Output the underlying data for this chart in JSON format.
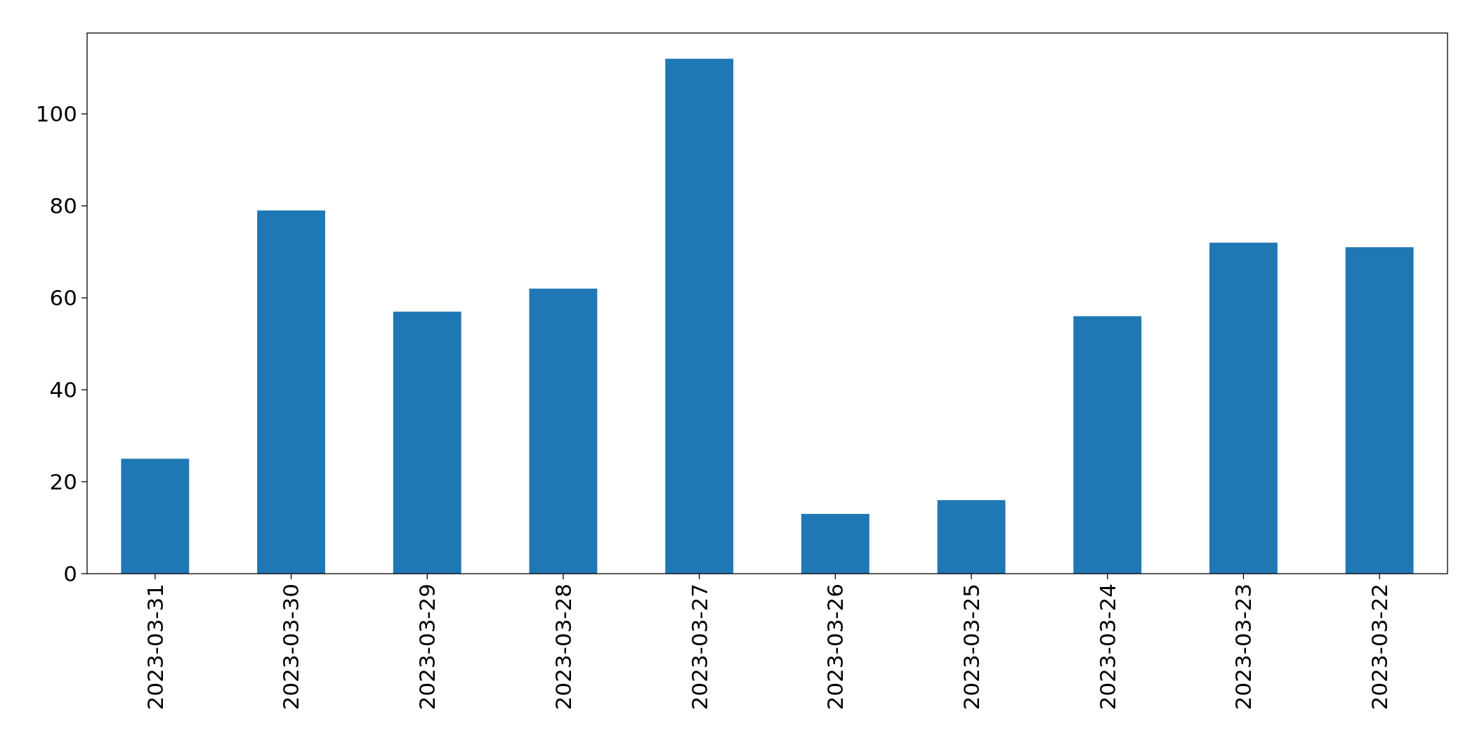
{
  "chart_data": {
    "type": "bar",
    "categories": [
      "2023-03-31",
      "2023-03-30",
      "2023-03-29",
      "2023-03-28",
      "2023-03-27",
      "2023-03-26",
      "2023-03-25",
      "2023-03-24",
      "2023-03-23",
      "2023-03-22"
    ],
    "values": [
      25,
      79,
      57,
      62,
      112,
      13,
      16,
      56,
      72,
      71
    ],
    "color": "#1f77b4",
    "ylim": [
      0,
      117.6
    ],
    "yticks": [
      0,
      20,
      40,
      60,
      80,
      100
    ],
    "grid": false
  }
}
